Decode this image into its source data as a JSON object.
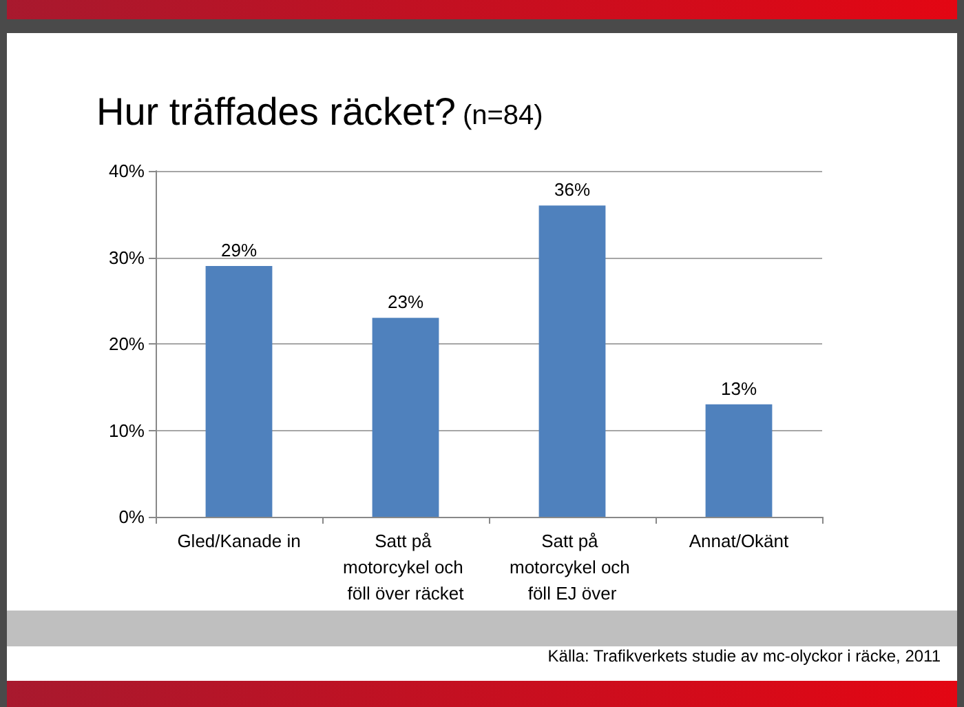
{
  "chart_data": {
    "type": "bar",
    "title": "Hur träffades räcket?",
    "subtitle": "(n=84)",
    "categories": [
      "Gled/Kanade in",
      "Satt på motorcykel och föll över räcket",
      "Satt på motorcykel och föll EJ över",
      "Annat/Okänt"
    ],
    "values": [
      29,
      23,
      36,
      13
    ],
    "value_labels": [
      "29%",
      "23%",
      "36%",
      "13%"
    ],
    "color": "#4f81bd",
    "ylim": [
      0,
      40
    ],
    "yticks": [
      {
        "value": 0,
        "label": "0%"
      },
      {
        "value": 10,
        "label": "10%"
      },
      {
        "value": 20,
        "label": "20%"
      },
      {
        "value": 30,
        "label": "30%"
      },
      {
        "value": 40,
        "label": "40%"
      }
    ],
    "grid": "y",
    "annotations": [
      "Källa: Trafikverkets studie av mc-olyckor i räcke, 2011"
    ]
  }
}
